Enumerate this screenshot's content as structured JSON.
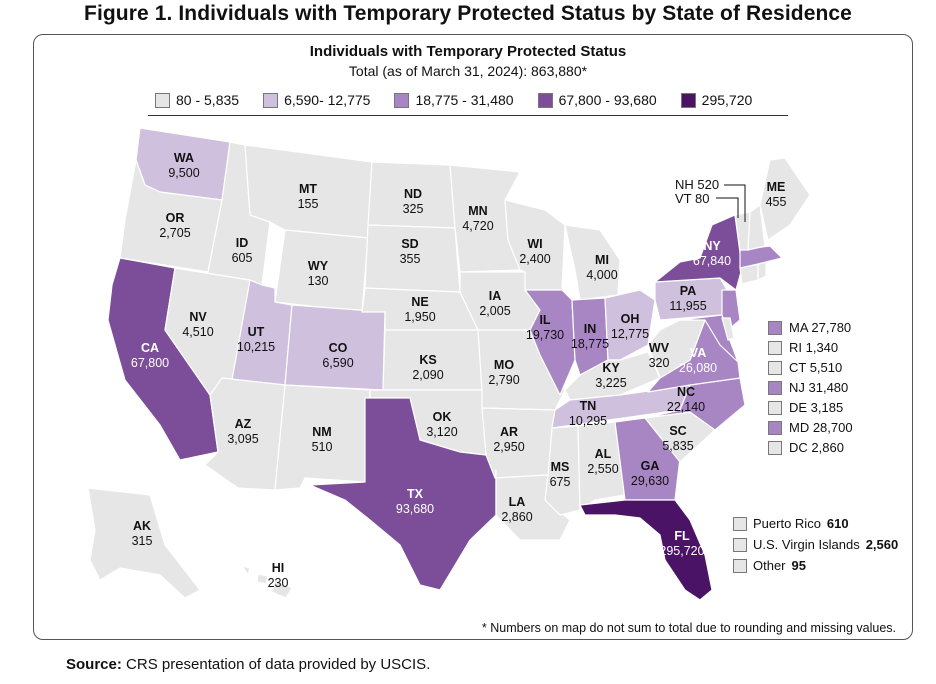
{
  "figure_title": "Figure 1. Individuals with Temporary Protected Status by State of Residence",
  "map_title": "Individuals with Temporary Protected Status",
  "map_subtitle": "Total (as of March 31, 2024): 863,880*",
  "legend": [
    {
      "label": "80 - 5,835",
      "color": "#e6e6e6"
    },
    {
      "label": "6,590- 12,775",
      "color": "#cfc0dd"
    },
    {
      "label": "18,775 - 31,480",
      "color": "#a886c4"
    },
    {
      "label": "67,800 - 93,680",
      "color": "#7c4d99"
    },
    {
      "label": "295,720",
      "color": "#4a1366"
    }
  ],
  "states": [
    {
      "abbr": "WA",
      "value": "9,500"
    },
    {
      "abbr": "OR",
      "value": "2,705"
    },
    {
      "abbr": "CA",
      "value": "67,800"
    },
    {
      "abbr": "NV",
      "value": "4,510"
    },
    {
      "abbr": "ID",
      "value": "605"
    },
    {
      "abbr": "MT",
      "value": "155"
    },
    {
      "abbr": "WY",
      "value": "130"
    },
    {
      "abbr": "UT",
      "value": "10,215"
    },
    {
      "abbr": "AZ",
      "value": "3,095"
    },
    {
      "abbr": "CO",
      "value": "6,590"
    },
    {
      "abbr": "NM",
      "value": "510"
    },
    {
      "abbr": "ND",
      "value": "325"
    },
    {
      "abbr": "SD",
      "value": "355"
    },
    {
      "abbr": "NE",
      "value": "1,950"
    },
    {
      "abbr": "KS",
      "value": "2,090"
    },
    {
      "abbr": "OK",
      "value": "3,120"
    },
    {
      "abbr": "TX",
      "value": "93,680"
    },
    {
      "abbr": "MN",
      "value": "4,720"
    },
    {
      "abbr": "IA",
      "value": "2,005"
    },
    {
      "abbr": "MO",
      "value": "2,790"
    },
    {
      "abbr": "AR",
      "value": "2,950"
    },
    {
      "abbr": "LA",
      "value": "2,860"
    },
    {
      "abbr": "WI",
      "value": "2,400"
    },
    {
      "abbr": "IL",
      "value": "19,730"
    },
    {
      "abbr": "MI",
      "value": "4,000"
    },
    {
      "abbr": "IN",
      "value": "18,775"
    },
    {
      "abbr": "OH",
      "value": "12,775"
    },
    {
      "abbr": "KY",
      "value": "3,225"
    },
    {
      "abbr": "TN",
      "value": "10,295"
    },
    {
      "abbr": "MS",
      "value": "675"
    },
    {
      "abbr": "AL",
      "value": "2,550"
    },
    {
      "abbr": "GA",
      "value": "29,630"
    },
    {
      "abbr": "FL",
      "value": "295,720"
    },
    {
      "abbr": "SC",
      "value": "5,835"
    },
    {
      "abbr": "NC",
      "value": "22,140"
    },
    {
      "abbr": "VA",
      "value": "26,080"
    },
    {
      "abbr": "WV",
      "value": "320"
    },
    {
      "abbr": "PA",
      "value": "11,955"
    },
    {
      "abbr": "NY",
      "value": "67,840"
    },
    {
      "abbr": "ME",
      "value": "455"
    },
    {
      "abbr": "AK",
      "value": "315"
    },
    {
      "abbr": "HI",
      "value": "230"
    }
  ],
  "callouts": [
    {
      "text": "NH 520"
    },
    {
      "text": "VT 80"
    }
  ],
  "small_states": [
    {
      "label": "MA 27,780",
      "color": "#a886c4"
    },
    {
      "label": "RI 1,340",
      "color": "#e6e6e6"
    },
    {
      "label": "CT 5,510",
      "color": "#e6e6e6"
    },
    {
      "label": "NJ 31,480",
      "color": "#a886c4"
    },
    {
      "label": "DE 3,185",
      "color": "#e6e6e6"
    },
    {
      "label": "MD 28,700",
      "color": "#a886c4"
    },
    {
      "label": "DC 2,860",
      "color": "#e6e6e6"
    }
  ],
  "territories": [
    {
      "name": "Puerto Rico",
      "value": "610",
      "color": "#e6e6e6"
    },
    {
      "name": "U.S. Virgin Islands",
      "value": "2,560",
      "color": "#e6e6e6"
    },
    {
      "name": "Other",
      "value": "95",
      "color": "#e6e6e6"
    }
  ],
  "footnote": "* Numbers on map do not sum to total due to rounding and missing values.",
  "source": {
    "label": "Source:",
    "text": " CRS presentation of data provided by USCIS."
  }
}
